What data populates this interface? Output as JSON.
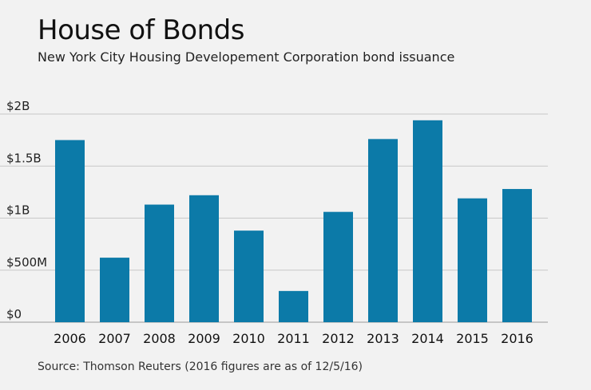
{
  "header": {
    "title": "House of Bonds",
    "subtitle": "New York City Housing Developement Corporation bond issuance"
  },
  "footer": {
    "source": "Source: Thomson Reuters (2016 figures are as of 12/5/16)"
  },
  "colors": {
    "bar": "#0c7aa8",
    "grid": "#c8c8c8",
    "background": "#f2f2f2"
  },
  "chart_data": {
    "type": "bar",
    "title": "House of Bonds",
    "subtitle": "New York City Housing Developement Corporation bond issuance",
    "xlabel": "",
    "ylabel": "",
    "categories": [
      "2006",
      "2007",
      "2008",
      "2009",
      "2010",
      "2011",
      "2012",
      "2013",
      "2014",
      "2015",
      "2016"
    ],
    "values": [
      1.75,
      0.62,
      1.13,
      1.22,
      0.88,
      0.3,
      1.06,
      1.76,
      1.94,
      1.19,
      1.28
    ],
    "units": "billion USD",
    "ylim": [
      0,
      2
    ],
    "yticks": [
      0,
      0.5,
      1,
      1.5,
      2
    ],
    "ytick_labels": [
      "$0",
      "$500M",
      "$1B",
      "$1.5B",
      "$2B"
    ],
    "grid": true,
    "legend": "none"
  }
}
